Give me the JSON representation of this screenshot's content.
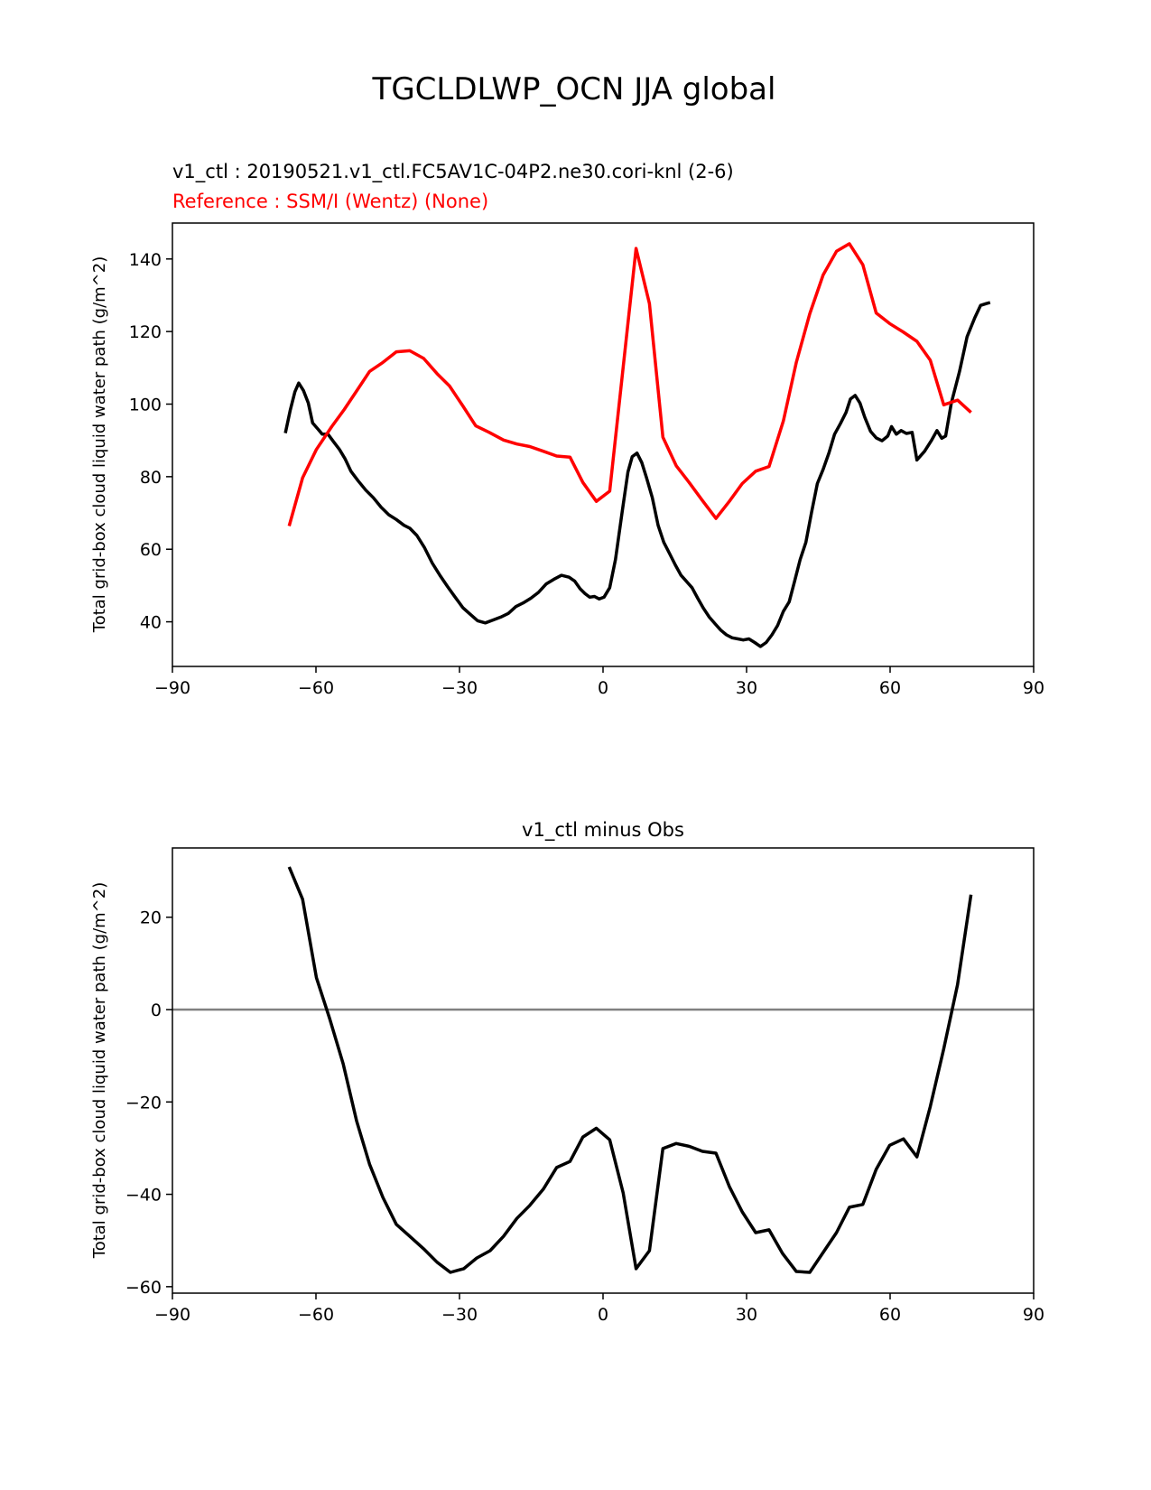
{
  "figure_title": "TGCLDLWP_OCN JJA global",
  "chart_data": [
    {
      "type": "line",
      "subtitle_test": "v1_ctl : 20190521.v1_ctl.FC5AV1C-04P2.ne30.cori-knl (2-6)",
      "subtitle_ref": "Reference : SSM/I (Wentz) (None)",
      "title": "",
      "xlabel": "",
      "ylabel": "Total grid-box cloud liquid water path (g/m^2)",
      "xlim": [
        -90,
        90
      ],
      "ylim": [
        27.7,
        149.9
      ],
      "xticks": [
        -90,
        -60,
        -30,
        0,
        30,
        60,
        90
      ],
      "xtick_labels": [
        "−90",
        "−60",
        "−30",
        "0",
        "30",
        "60",
        "90"
      ],
      "yticks": [
        40,
        60,
        80,
        100,
        120,
        140
      ],
      "ytick_labels": [
        "40",
        "60",
        "80",
        "100",
        "120",
        "140"
      ],
      "grid": false,
      "series": [
        {
          "name": "v1_ctl",
          "color": "#000000",
          "x": [
            -66.4,
            -65.4,
            -64.4,
            -63.6,
            -62.6,
            -61.6,
            -60.7,
            -59.5,
            -58.7,
            -57.5,
            -56.3,
            -55.1,
            -53.9,
            -52.7,
            -51.2,
            -49.6,
            -48,
            -46.4,
            -44.8,
            -43.2,
            -41.6,
            -40.4,
            -38.9,
            -37.3,
            -35.7,
            -34.1,
            -32.5,
            -30.9,
            -29.3,
            -27.8,
            -26.2,
            -24.6,
            -23,
            -21.4,
            -19.8,
            -18.2,
            -16.7,
            -15.1,
            -13.5,
            -11.9,
            -10.3,
            -8.7,
            -7.1,
            -5.9,
            -4.8,
            -3.8,
            -2.8,
            -1.8,
            -0.8,
            0.2,
            1.4,
            2.6,
            4,
            5.2,
            6.1,
            7.1,
            8.1,
            9.1,
            10.3,
            11.5,
            12.7,
            13.9,
            15.1,
            16.3,
            17.4,
            18.6,
            19.8,
            21,
            22.2,
            23.4,
            24.6,
            25.8,
            27,
            28.2,
            29.3,
            30.5,
            31.7,
            32.9,
            34.1,
            35.3,
            36.5,
            37.7,
            38.9,
            40,
            41.2,
            42.4,
            43.6,
            44.8,
            46,
            47.2,
            48.4,
            49.6,
            50.8,
            51.7,
            52.7,
            53.7,
            54.7,
            55.9,
            57.1,
            58.3,
            59.5,
            60.3,
            61.3,
            62.3,
            63.4,
            64.6,
            65.6,
            67.2,
            68.6,
            69.8,
            70.8,
            71.6,
            72.8,
            74.5,
            76.1,
            77.7,
            78.9,
            80.1,
            80.9
          ],
          "y": [
            92,
            98.2,
            103.4,
            105.8,
            103.7,
            100.3,
            94.8,
            93,
            91.7,
            91.7,
            89.6,
            87.5,
            84.9,
            81.5,
            78.9,
            76.3,
            74.2,
            71.6,
            69.5,
            68.2,
            66.6,
            65.8,
            63.8,
            60.4,
            56.2,
            52.8,
            49.7,
            46.8,
            43.9,
            42.1,
            40.3,
            39.7,
            40.5,
            41.3,
            42.3,
            44.2,
            45.2,
            46.5,
            48.1,
            50.4,
            51.7,
            52.8,
            52.3,
            51.2,
            49.1,
            47.8,
            46.8,
            47,
            46.3,
            46.8,
            49.4,
            57.2,
            70.3,
            81.3,
            85.5,
            86.5,
            83.9,
            79.7,
            74.2,
            66.6,
            61.9,
            58.8,
            55.7,
            52.8,
            51.2,
            49.4,
            46.5,
            43.7,
            41.3,
            39.5,
            37.7,
            36.4,
            35.6,
            35.3,
            35,
            35.3,
            34.3,
            33.2,
            34.3,
            36.4,
            39,
            42.9,
            45.5,
            51,
            57.2,
            61.9,
            70.3,
            78.1,
            82,
            86.5,
            91.7,
            94.6,
            97.7,
            101.4,
            102.4,
            100.3,
            96.4,
            92.5,
            90.7,
            89.9,
            91.2,
            93.8,
            91.7,
            92.7,
            91.9,
            92.2,
            84.6,
            87,
            89.9,
            92.7,
            90.6,
            91.2,
            100.3,
            108.9,
            118.6,
            123.8,
            127.2,
            127.7,
            128
          ]
        },
        {
          "name": "SSM/I (Wentz)",
          "color": "#ff0000",
          "x": [
            -65.6,
            -62.8,
            -59.9,
            -56.7,
            -54.1,
            -51.3,
            -48.8,
            -46.2,
            -43.2,
            -40.4,
            -37.5,
            -34.7,
            -32.1,
            -29.3,
            -26.6,
            -23.8,
            -20.8,
            -18,
            -15.3,
            -12.5,
            -9.7,
            -6.9,
            -4.2,
            -1.4,
            1.4,
            6.9,
            9.7,
            12.5,
            15.3,
            18,
            20.8,
            23.6,
            26.4,
            29.1,
            31.9,
            34.7,
            37.7,
            40.4,
            43.2,
            46,
            48.8,
            51.5,
            54.3,
            57.1,
            59.9,
            62.7,
            65.6,
            68.4,
            71.2,
            74.1,
            76.9
          ],
          "y": [
            66.4,
            79.7,
            87.5,
            93.8,
            98.5,
            104,
            109,
            111.3,
            114.4,
            114.7,
            112.6,
            108.4,
            105,
            99.5,
            94,
            92.2,
            90.1,
            89,
            88.3,
            87,
            85.7,
            85.4,
            78.4,
            73.2,
            76,
            142.9,
            127.7,
            90.9,
            83,
            78.4,
            73.4,
            68.5,
            73.2,
            78.1,
            81.5,
            82.8,
            95.4,
            111.5,
            124.9,
            135.6,
            142.1,
            144.2,
            138.4,
            125.1,
            122.2,
            119.9,
            117.3,
            112.1,
            99.8,
            101.1,
            97.7
          ]
        }
      ]
    },
    {
      "type": "line",
      "title": "v1_ctl minus Obs",
      "xlabel": "",
      "ylabel": "Total grid-box cloud liquid water path (g/m^2)",
      "xlim": [
        -90,
        90
      ],
      "ylim": [
        -61.4,
        35
      ],
      "xticks": [
        -90,
        -60,
        -30,
        0,
        30,
        60,
        90
      ],
      "xtick_labels": [
        "−90",
        "−60",
        "−30",
        "0",
        "30",
        "60",
        "90"
      ],
      "yticks": [
        -60,
        -40,
        -20,
        0,
        20
      ],
      "ytick_labels": [
        "−60",
        "−40",
        "−20",
        "0",
        "20"
      ],
      "grid": false,
      "zero_line_color": "#808080",
      "series": [
        {
          "name": "v1_ctl minus Obs",
          "color": "#000000",
          "x": [
            -65.6,
            -62.8,
            -59.9,
            -57.1,
            -54.3,
            -51.5,
            -48.8,
            -46,
            -43.2,
            -40.4,
            -37.5,
            -34.7,
            -31.9,
            -29.1,
            -26.4,
            -23.6,
            -20.8,
            -18,
            -15.3,
            -12.5,
            -9.7,
            -6.9,
            -4.2,
            -1.4,
            1.4,
            4.2,
            6.9,
            9.7,
            12.5,
            15.3,
            18,
            20.8,
            23.6,
            26.4,
            29.1,
            31.9,
            34.7,
            37.5,
            40.4,
            43.2,
            46,
            48.8,
            51.5,
            54.3,
            57.1,
            59.9,
            62.8,
            65.6,
            68.4,
            71.2,
            74.1,
            76.9
          ],
          "y": [
            30.9,
            23.9,
            6.9,
            -2.1,
            -11.8,
            -24.1,
            -33.5,
            -40.7,
            -46.5,
            -49.1,
            -51.8,
            -54.7,
            -56.9,
            -56.1,
            -53.8,
            -52.2,
            -49.1,
            -45.2,
            -42.4,
            -38.9,
            -34.2,
            -32.9,
            -27.6,
            -25.7,
            -28.2,
            -39.7,
            -56.1,
            -52.2,
            -30.1,
            -29,
            -29.6,
            -30.7,
            -31.1,
            -38.3,
            -43.8,
            -48.3,
            -47.7,
            -52.8,
            -56.7,
            -56.9,
            -52.6,
            -48.3,
            -42.8,
            -42.2,
            -34.6,
            -29.4,
            -28,
            -31.9,
            -21,
            -8.5,
            5.4,
            24.9
          ]
        }
      ]
    }
  ]
}
